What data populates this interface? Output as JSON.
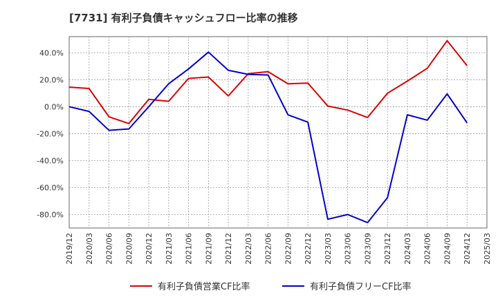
{
  "chart_data": {
    "type": "line",
    "title": "[7731]  有利子負債キャッシュフロー比率の推移",
    "x": [
      "2019/12",
      "2020/03",
      "2020/06",
      "2020/09",
      "2020/12",
      "2021/03",
      "2021/06",
      "2021/09",
      "2021/12",
      "2022/03",
      "2022/06",
      "2022/09",
      "2022/12",
      "2023/03",
      "2023/06",
      "2023/09",
      "2023/12",
      "2024/03",
      "2024/06",
      "2024/09",
      "2024/12",
      "2025/03"
    ],
    "y_ticks": [
      "40.0%",
      "20.0%",
      "0.0%",
      "-20.0%",
      "-40.0%",
      "-60.0%",
      "-80.0%"
    ],
    "y_tick_values": [
      40,
      20,
      0,
      -20,
      -40,
      -60,
      -80
    ],
    "ylim": [
      -90,
      52
    ],
    "grid": true,
    "legend_position": "bottom",
    "series": [
      {
        "name": "有利子負債営業CF比率",
        "color": "#dd0000",
        "values": [
          14.5,
          13.5,
          -7.5,
          -12.5,
          5.5,
          4.0,
          21.0,
          22.0,
          8.0,
          24.5,
          26.0,
          17.0,
          17.5,
          0.5,
          -2.5,
          -8.0,
          10.0,
          19.0,
          28.5,
          49.0,
          30.5,
          null
        ]
      },
      {
        "name": "有利子負債フリーCF比率",
        "color": "#0000cc",
        "values": [
          0.0,
          -3.5,
          -17.5,
          -16.5,
          0.0,
          17.0,
          28.0,
          40.5,
          27.0,
          24.0,
          23.5,
          -6.0,
          -11.5,
          -83.5,
          -80.0,
          -86.0,
          -67.5,
          -6.0,
          -10.0,
          9.5,
          -12.0,
          null
        ]
      }
    ]
  }
}
